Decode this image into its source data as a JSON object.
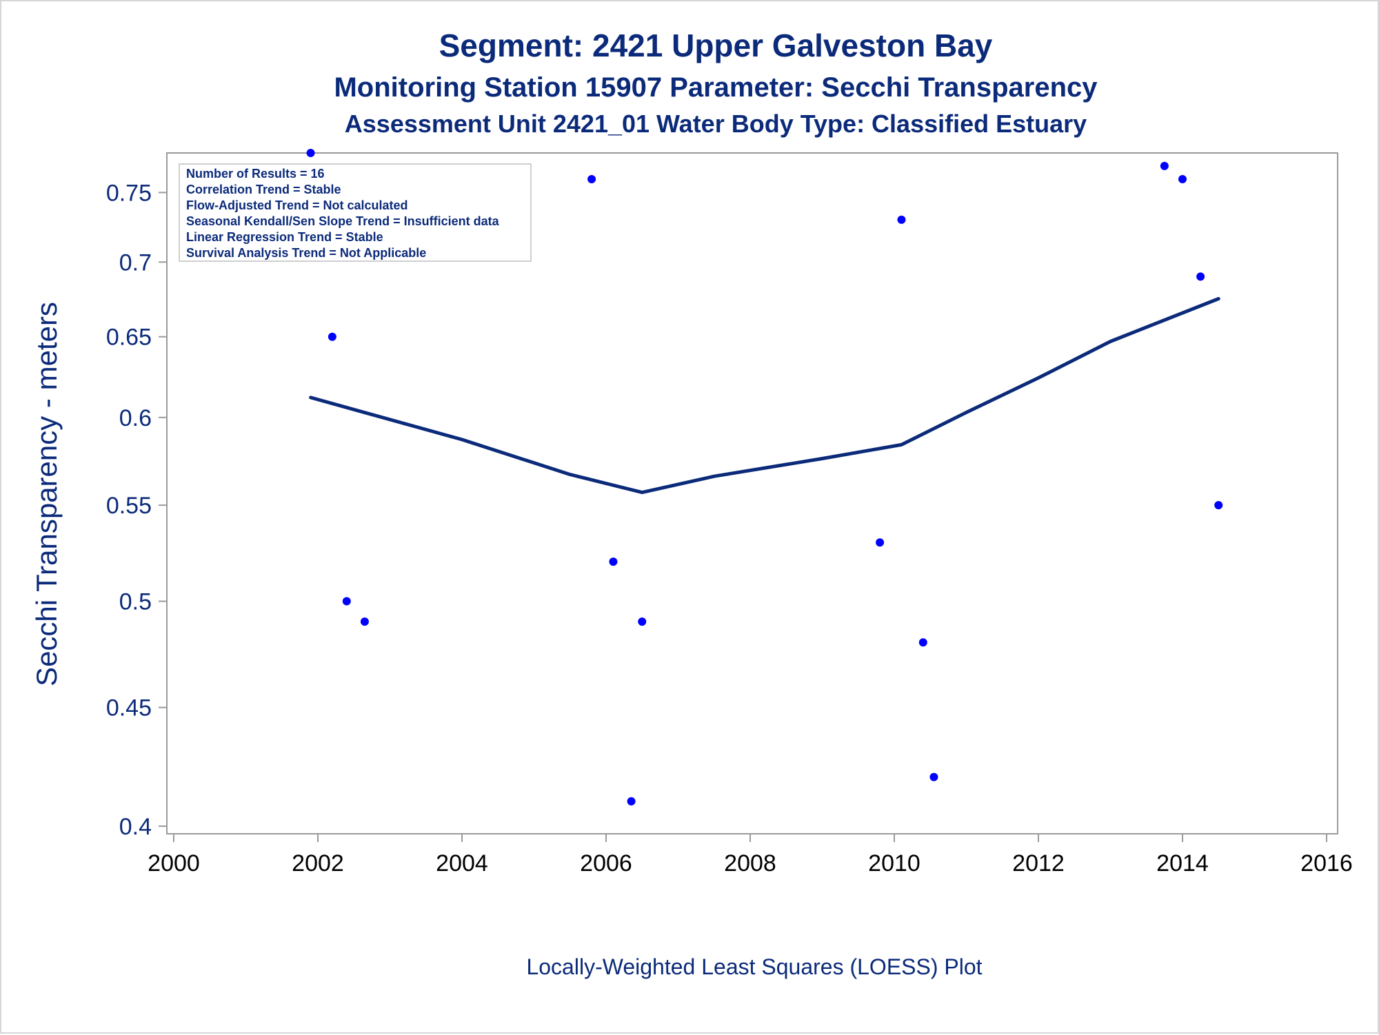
{
  "titles": {
    "line1": "Segment: 2421  Upper Galveston Bay",
    "line2": "Monitoring Station 15907 Parameter: Secchi Transparency",
    "line3": "Assessment Unit 2421_01   Water Body Type: Classified Estuary"
  },
  "stats_box": {
    "lines": [
      "Number of Results = 16",
      "Correlation Trend = Stable",
      "Flow-Adjusted Trend = Not calculated",
      "Seasonal Kendall/Sen Slope Trend = Insufficient data",
      "Linear Regression Trend = Stable",
      "Survival Analysis Trend = Not Applicable"
    ]
  },
  "footnote": "Locally-Weighted Least Squares (LOESS) Plot",
  "colors": {
    "text": "#0b2a7a",
    "points": "#0000ff",
    "loess_line": "#0b2a7a",
    "axis": "#9a9a9a"
  },
  "chart_data": {
    "type": "scatter",
    "title": "Segment: 2421  Upper Galveston Bay",
    "xlabel": "",
    "ylabel": "Secchi Transparency - meters",
    "y_scale": "log",
    "xlim": [
      2000,
      2016
    ],
    "ylim": [
      0.397,
      0.78
    ],
    "x_ticks": [
      "2000",
      "2002",
      "2004",
      "2006",
      "2008",
      "2010",
      "2012",
      "2014",
      "2016"
    ],
    "y_ticks": [
      "0.4",
      "0.45",
      "0.5",
      "0.55",
      "0.6",
      "0.65",
      "0.7",
      "0.75"
    ],
    "grid": false,
    "series": [
      {
        "marker": "dot",
        "points": [
          {
            "x": 2001.9,
            "y": 0.78
          },
          {
            "x": 2002.2,
            "y": 0.65
          },
          {
            "x": 2002.4,
            "y": 0.5
          },
          {
            "x": 2002.65,
            "y": 0.49
          },
          {
            "x": 2005.8,
            "y": 0.76
          },
          {
            "x": 2006.1,
            "y": 0.52
          },
          {
            "x": 2006.35,
            "y": 0.41
          },
          {
            "x": 2006.5,
            "y": 0.49
          },
          {
            "x": 2009.8,
            "y": 0.53
          },
          {
            "x": 2010.1,
            "y": 0.73
          },
          {
            "x": 2010.4,
            "y": 0.48
          },
          {
            "x": 2010.55,
            "y": 0.42
          },
          {
            "x": 2013.75,
            "y": 0.77
          },
          {
            "x": 2014.0,
            "y": 0.76
          },
          {
            "x": 2014.25,
            "y": 0.69
          },
          {
            "x": 2014.5,
            "y": 0.55
          }
        ]
      },
      {
        "marker": "line",
        "points": [
          {
            "x": 2001.9,
            "y": 0.612
          },
          {
            "x": 2004.0,
            "y": 0.587
          },
          {
            "x": 2005.5,
            "y": 0.567
          },
          {
            "x": 2006.5,
            "y": 0.557
          },
          {
            "x": 2007.5,
            "y": 0.566
          },
          {
            "x": 2009.0,
            "y": 0.576
          },
          {
            "x": 2010.1,
            "y": 0.584
          },
          {
            "x": 2011.0,
            "y": 0.603
          },
          {
            "x": 2012.0,
            "y": 0.624
          },
          {
            "x": 2013.0,
            "y": 0.647
          },
          {
            "x": 2014.5,
            "y": 0.675
          }
        ]
      }
    ]
  }
}
